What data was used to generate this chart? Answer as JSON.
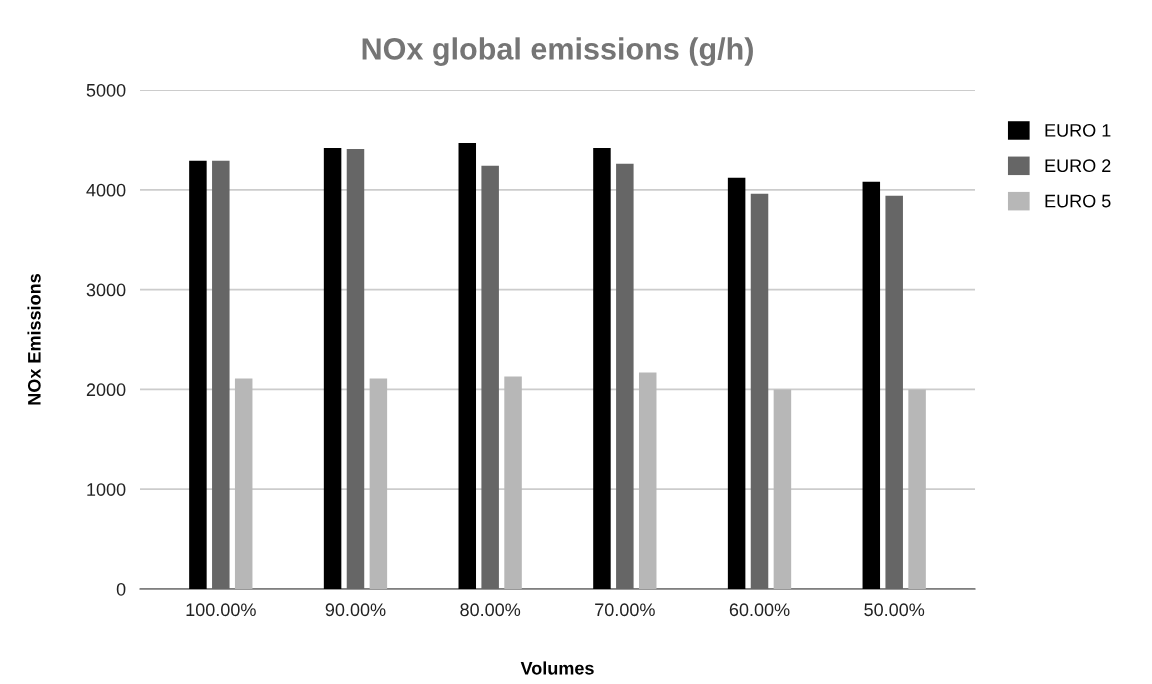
{
  "chart_data": {
    "type": "bar",
    "title": "NOx global emissions (g/h)",
    "xlabel": "Volumes",
    "ylabel": "NOx Emissions",
    "categories": [
      "100.00%",
      "90.00%",
      "80.00%",
      "70.00%",
      "60.00%",
      "50.00%"
    ],
    "series": [
      {
        "name": "EURO 1",
        "color": "#000000",
        "values": [
          4290,
          4420,
          4470,
          4420,
          4120,
          4080
        ]
      },
      {
        "name": "EURO 2",
        "color": "#666666",
        "values": [
          4290,
          4410,
          4240,
          4260,
          3960,
          3940
        ]
      },
      {
        "name": "EURO 5",
        "color": "#b7b7b7",
        "values": [
          2110,
          2110,
          2130,
          2170,
          2000,
          2000
        ]
      }
    ],
    "ylim": [
      0,
      5000
    ],
    "yticks": [
      0,
      1000,
      2000,
      3000,
      4000,
      5000
    ],
    "grid": "y",
    "legend": "top right"
  }
}
